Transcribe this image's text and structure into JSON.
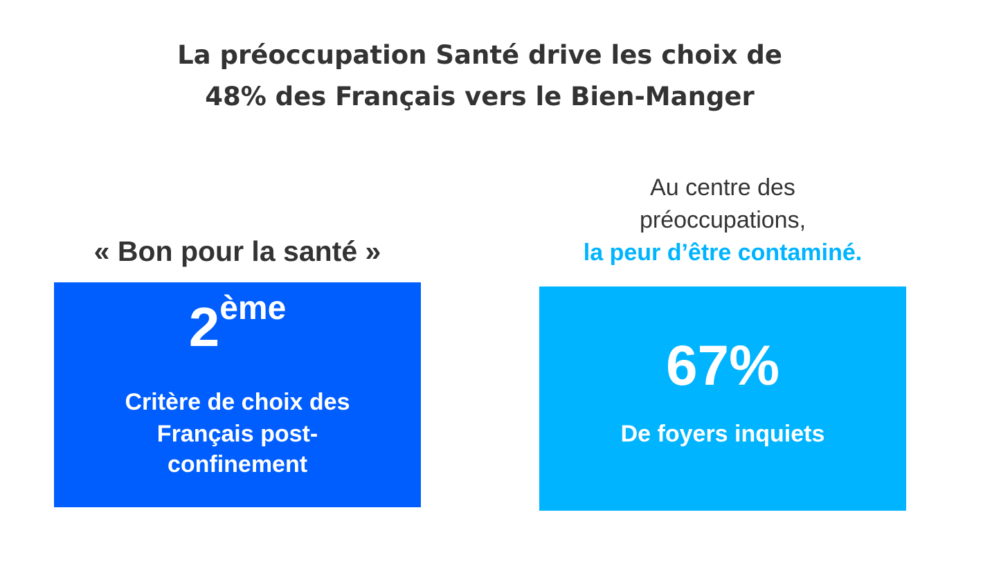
{
  "colors": {
    "text": "#333333",
    "box_left": "#005EFF",
    "box_right": "#00B4FF",
    "accent": "#00B4FF"
  },
  "title": {
    "line1": "La préoccupation Santé drive les choix de",
    "line2": "48% des Français vers le Bien-Manger"
  },
  "left": {
    "heading": "« Bon pour la santé »",
    "rank_number": "2",
    "rank_suffix": "ème",
    "lines": [
      "Critère de choix des",
      "Français post-",
      "confinement"
    ]
  },
  "right": {
    "heading_line1": "Au centre des",
    "heading_line2": "préoccupations,",
    "heading_accent": "la peur d’être contaminé.",
    "percent": "67%",
    "caption": "De foyers inquiets"
  }
}
